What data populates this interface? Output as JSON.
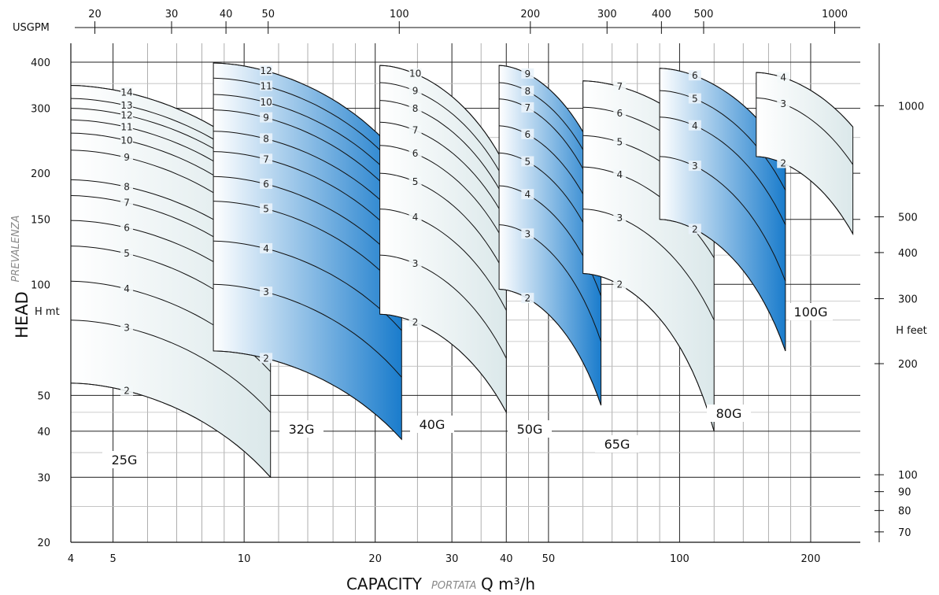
{
  "chart_data": {
    "type": "line",
    "title": "",
    "x_axis": {
      "scale": "log",
      "range": [
        4,
        260
      ],
      "ticks": [
        4,
        5,
        10,
        20,
        30,
        40,
        50,
        100,
        200
      ],
      "label_main": "CAPACITY",
      "label_sub": "PORTATA",
      "label_unit": "Q m³/h"
    },
    "top_axis": {
      "label": "USGPM",
      "ticks": [
        20,
        30,
        40,
        50,
        100,
        200,
        300,
        400,
        500,
        1000
      ]
    },
    "y_axis": {
      "scale": "log",
      "range": [
        20,
        450
      ],
      "ticks": [
        20,
        30,
        40,
        50,
        100,
        150,
        200,
        300,
        400
      ],
      "label_main": "HEAD",
      "label_sub": "PREVALENZA",
      "label_unit": "H mt"
    },
    "right_axis": {
      "label": "H feet",
      "ticks": [
        70,
        80,
        90,
        100,
        200,
        300,
        400,
        500,
        1000
      ]
    },
    "grid": true,
    "colors": {
      "pale": "#dbe8ea",
      "blue": "#1a7ccc",
      "outline": "#111111"
    },
    "families": [
      {
        "name": "25G",
        "style": "pale",
        "qmin": 4,
        "qmax": 11.5,
        "stages": [
          "2",
          "3",
          "4",
          "5",
          "6",
          "7",
          "8",
          "9",
          "10",
          "11",
          "12",
          "13",
          "14"
        ],
        "head_shutoff": [
          54,
          80,
          102,
          127,
          149,
          174,
          192,
          231,
          257,
          279,
          300,
          319,
          346
        ],
        "head_end": [
          30,
          45,
          58,
          73,
          88,
          103,
          116,
          134,
          150,
          165,
          180,
          190,
          205
        ]
      },
      {
        "name": "32G",
        "style": "blue",
        "qmin": 8.5,
        "qmax": 23,
        "stages": [
          "2",
          "3",
          "4",
          "5",
          "6",
          "7",
          "8",
          "9",
          "10",
          "11",
          "12"
        ],
        "head_shutoff": [
          66,
          100,
          131,
          168,
          196,
          229,
          260,
          297,
          327,
          362,
          398
        ],
        "head_end": [
          38,
          56,
          75,
          95,
          112,
          130,
          148,
          165,
          183,
          200,
          218
        ]
      },
      {
        "name": "40G",
        "style": "pale",
        "qmin": 20.5,
        "qmax": 40,
        "stages": [
          "2",
          "3",
          "4",
          "5",
          "6",
          "7",
          "8",
          "9",
          "10"
        ],
        "head_shutoff": [
          83,
          120,
          160,
          200,
          238,
          275,
          315,
          352,
          392
        ],
        "head_end": [
          45,
          63,
          85,
          105,
          127,
          148,
          167,
          187,
          207
        ]
      },
      {
        "name": "50G",
        "style": "blue",
        "qmin": 38.5,
        "qmax": 66,
        "stages": [
          "2",
          "3",
          "4",
          "5",
          "6",
          "7",
          "8",
          "9"
        ],
        "head_shutoff": [
          97,
          145,
          185,
          227,
          269,
          318,
          352,
          392
        ],
        "head_end": [
          47,
          70,
          93,
          115,
          138,
          160,
          183,
          205
        ]
      },
      {
        "name": "65G",
        "style": "pale",
        "qmin": 60,
        "qmax": 120,
        "stages": [
          "2",
          "3",
          "4",
          "5",
          "6",
          "7"
        ],
        "head_shutoff": [
          107,
          160,
          208,
          253,
          302,
          356
        ],
        "head_end": [
          40,
          80,
          118,
          158,
          198,
          238
        ]
      },
      {
        "name": "80G",
        "style": "blue",
        "qmin": 90,
        "qmax": 175,
        "stages": [
          "2",
          "3",
          "4",
          "5",
          "6"
        ],
        "head_shutoff": [
          150,
          222,
          284,
          335,
          385
        ],
        "head_end": [
          66,
          102,
          145,
          180,
          223
        ]
      },
      {
        "name": "100G",
        "style": "pale",
        "qmin": 150,
        "qmax": 250,
        "stages": [
          "2",
          "3",
          "4"
        ],
        "head_shutoff": [
          222,
          320,
          375
        ],
        "head_end": [
          137,
          211,
          267
        ]
      }
    ]
  }
}
